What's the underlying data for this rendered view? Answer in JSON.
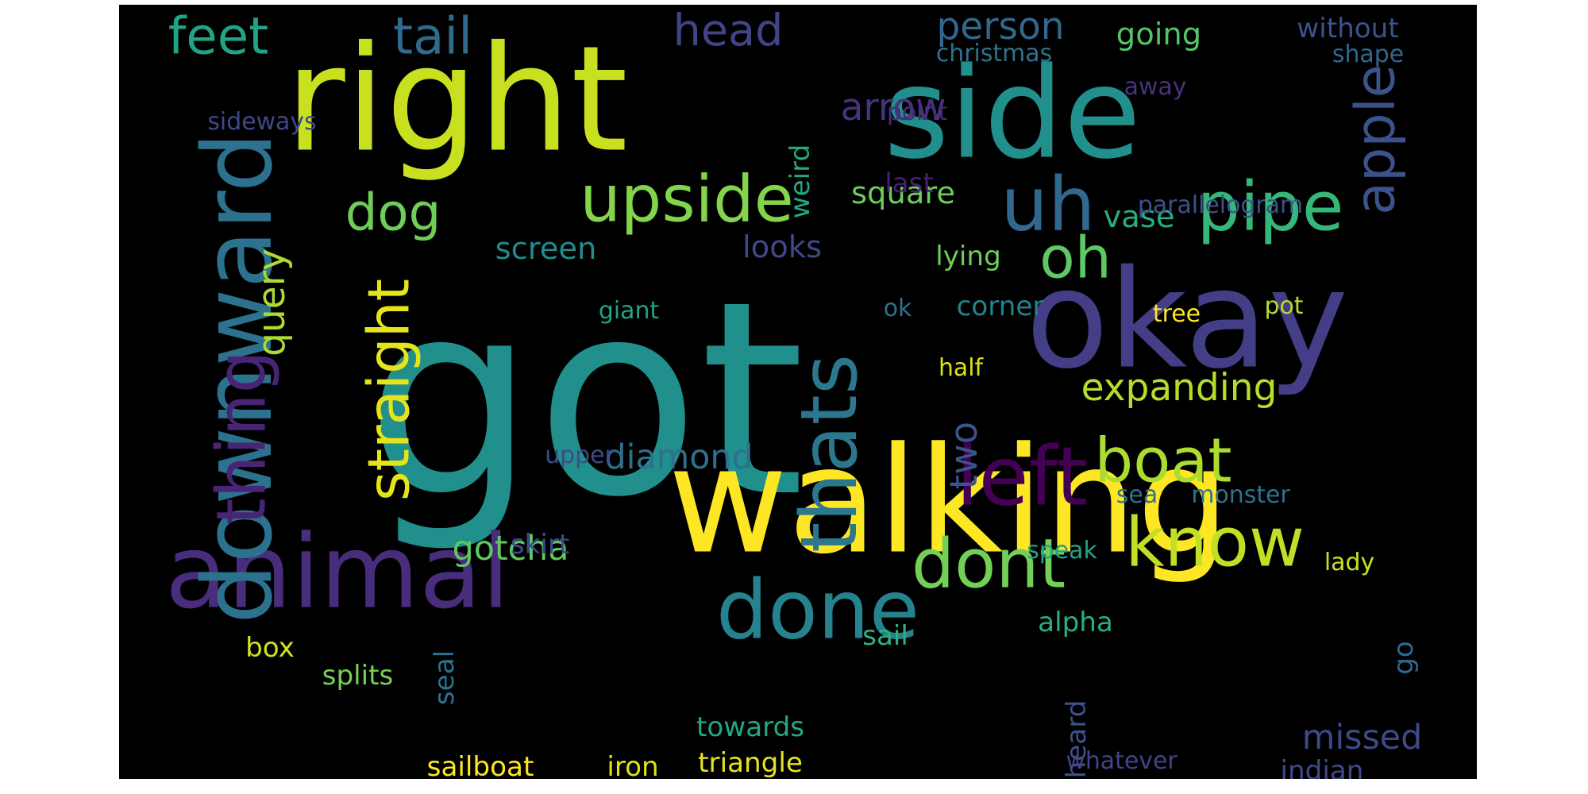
{
  "words": [
    {
      "text": "got",
      "color": "#21908d"
    },
    {
      "text": "right",
      "color": "#c8e020"
    },
    {
      "text": "side",
      "color": "#21908d"
    },
    {
      "text": "walking",
      "color": "#fde725"
    },
    {
      "text": "okay",
      "color": "#433e85"
    },
    {
      "text": "animal",
      "color": "#472d7b"
    },
    {
      "text": "upside",
      "color": "#84d44b"
    },
    {
      "text": "pipe",
      "color": "#35b779"
    },
    {
      "text": "downward",
      "color": "#2c728e"
    },
    {
      "text": "done",
      "color": "#26828e"
    },
    {
      "text": "dont",
      "color": "#73d056"
    },
    {
      "text": "know",
      "color": "#c0df25"
    },
    {
      "text": "boat",
      "color": "#addc30"
    },
    {
      "text": "uh",
      "color": "#31688e"
    },
    {
      "text": "oh",
      "color": "#5ec962"
    },
    {
      "text": "dog",
      "color": "#6ece58"
    },
    {
      "text": "feet",
      "color": "#20a486"
    },
    {
      "text": "tail",
      "color": "#2f6b8e"
    },
    {
      "text": "left",
      "color": "#440154"
    },
    {
      "text": "thats",
      "color": "#2a778e"
    },
    {
      "text": "thing",
      "color": "#482475"
    },
    {
      "text": "straight",
      "color": "#e5e419"
    },
    {
      "text": "person",
      "color": "#31688e"
    },
    {
      "text": "apple",
      "color": "#3b528b"
    },
    {
      "text": "head",
      "color": "#414487"
    },
    {
      "text": "arrow",
      "color": "#46327e"
    },
    {
      "text": "square",
      "color": "#6ccd5a"
    },
    {
      "text": "expanding",
      "color": "#b5de2b"
    },
    {
      "text": "diamond",
      "color": "#2d708e"
    },
    {
      "text": "gotcha",
      "color": "#5ec962"
    },
    {
      "text": "screen",
      "color": "#238a8d"
    },
    {
      "text": "vase",
      "color": "#28ae80"
    },
    {
      "text": "looks",
      "color": "#3e4989"
    },
    {
      "text": "missed",
      "color": "#3e4989"
    },
    {
      "text": "going",
      "color": "#52c569"
    },
    {
      "text": "query",
      "color": "#addc30"
    },
    {
      "text": "two",
      "color": "#3b528b"
    },
    {
      "text": "without",
      "color": "#3b528b"
    },
    {
      "text": "christmas",
      "color": "#2c728e"
    },
    {
      "text": "shape",
      "color": "#31688e"
    },
    {
      "text": "away",
      "color": "#46327e"
    },
    {
      "text": "point",
      "color": "#472c7a"
    },
    {
      "text": "sideways",
      "color": "#3e4989"
    },
    {
      "text": "weird",
      "color": "#22a884"
    },
    {
      "text": "last",
      "color": "#481f70"
    },
    {
      "text": "parallelogram",
      "color": "#3b528b"
    },
    {
      "text": "lying",
      "color": "#6ece58"
    },
    {
      "text": "giant",
      "color": "#20a386"
    },
    {
      "text": "ok",
      "color": "#2c728e"
    },
    {
      "text": "corner",
      "color": "#26828e"
    },
    {
      "text": "tree",
      "color": "#fde725"
    },
    {
      "text": "pot",
      "color": "#b5de2b"
    },
    {
      "text": "half",
      "color": "#dde318"
    },
    {
      "text": "upper",
      "color": "#3e4989"
    },
    {
      "text": "sea",
      "color": "#2c728e"
    },
    {
      "text": "monster",
      "color": "#2c728e"
    },
    {
      "text": "skirt",
      "color": "#3e4989"
    },
    {
      "text": "speak",
      "color": "#20a386"
    },
    {
      "text": "lady",
      "color": "#cae11f"
    },
    {
      "text": "sail",
      "color": "#2db27d"
    },
    {
      "text": "alpha",
      "color": "#29af7f"
    },
    {
      "text": "box",
      "color": "#d2e21b"
    },
    {
      "text": "splits",
      "color": "#75d054"
    },
    {
      "text": "seal",
      "color": "#2c728e"
    },
    {
      "text": "go",
      "color": "#31688e"
    },
    {
      "text": "heard",
      "color": "#3b528b"
    },
    {
      "text": "towards",
      "color": "#22a884"
    },
    {
      "text": "sailboat",
      "color": "#fde725"
    },
    {
      "text": "iron",
      "color": "#dde318"
    },
    {
      "text": "triangle",
      "color": "#e5e419"
    },
    {
      "text": "whatever",
      "color": "#414487"
    },
    {
      "text": "indian",
      "color": "#3e4989"
    }
  ]
}
